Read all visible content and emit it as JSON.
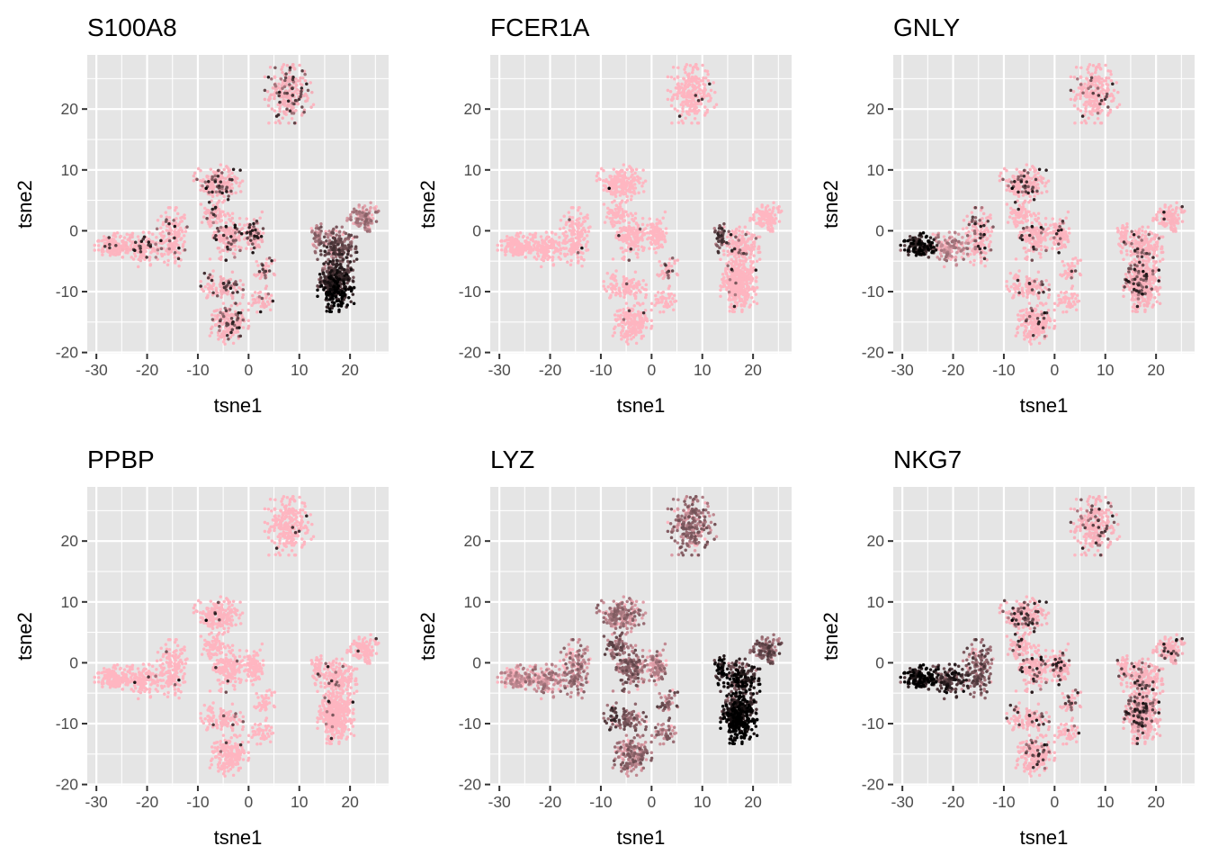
{
  "figure": {
    "description": "t-SNE embedding colored by gene expression, 2x3 facet grid"
  },
  "chart_data": {
    "type": "scatter",
    "xlabel": "tsne1",
    "ylabel": "tsne2",
    "xlim": [
      -31.8,
      27.6
    ],
    "ylim": [
      -20.2,
      28.9
    ],
    "xticks": [
      -30,
      -20,
      -10,
      0,
      10,
      20
    ],
    "xtick_labels": [
      "-30",
      "-20",
      "-10",
      "0",
      "10",
      "20"
    ],
    "yticks": [
      -20,
      -10,
      0,
      10,
      20
    ],
    "ytick_labels": [
      "-20",
      "-10",
      "0",
      "10",
      "20"
    ],
    "grid": true,
    "panel_background": "#e5e5e5",
    "grid_color": "#ffffff",
    "color_scale": {
      "low": "#ffb6c1",
      "high": "#000000",
      "legend": "none"
    },
    "clusters": [
      {
        "id": "top",
        "cx": 8.0,
        "cy": 22.5,
        "sx": 2.0,
        "sy": 2.0,
        "n": 260
      },
      {
        "id": "upper-mid",
        "cx": -6.0,
        "cy": 7.8,
        "sx": 2.0,
        "sy": 1.3,
        "n": 210
      },
      {
        "id": "mid-small",
        "cx": -6.5,
        "cy": 2.8,
        "sx": 1.2,
        "sy": 1.0,
        "n": 70
      },
      {
        "id": "center-l",
        "cx": -4.0,
        "cy": -1.0,
        "sx": 1.5,
        "sy": 1.6,
        "n": 150
      },
      {
        "id": "center-r",
        "cx": 1.0,
        "cy": -0.5,
        "sx": 1.2,
        "sy": 1.5,
        "n": 110
      },
      {
        "id": "arm-far",
        "cx": -26.5,
        "cy": -2.5,
        "sx": 1.6,
        "sy": 0.9,
        "n": 150
      },
      {
        "id": "arm-mid",
        "cx": -20.5,
        "cy": -2.8,
        "sx": 1.8,
        "sy": 1.3,
        "n": 140
      },
      {
        "id": "arm-near",
        "cx": -15.0,
        "cy": -1.0,
        "sx": 1.2,
        "sy": 2.0,
        "n": 160
      },
      {
        "id": "lower-mid",
        "cx": -4.2,
        "cy": -9.3,
        "sx": 1.3,
        "sy": 1.1,
        "n": 80
      },
      {
        "id": "lower-left",
        "cx": -7.5,
        "cy": -9.0,
        "sx": 0.8,
        "sy": 1.0,
        "n": 35
      },
      {
        "id": "bottom",
        "cx": -3.8,
        "cy": -15.3,
        "sx": 1.6,
        "sy": 1.4,
        "n": 190
      },
      {
        "id": "right-up",
        "cx": 3.0,
        "cy": -6.5,
        "sx": 0.9,
        "sy": 1.1,
        "n": 45
      },
      {
        "id": "right-low",
        "cx": 2.5,
        "cy": -11.5,
        "sx": 1.0,
        "sy": 0.9,
        "n": 45
      },
      {
        "id": "mono-body",
        "cx": 17.2,
        "cy": -8.5,
        "sx": 1.5,
        "sy": 2.0,
        "n": 420
      },
      {
        "id": "mono-neck",
        "cx": 17.5,
        "cy": -2.5,
        "sx": 1.6,
        "sy": 1.3,
        "n": 170
      },
      {
        "id": "mono-arm",
        "cx": 22.5,
        "cy": 2.3,
        "sx": 1.3,
        "sy": 1.0,
        "n": 120
      },
      {
        "id": "mono-spur",
        "cx": 13.6,
        "cy": -1.2,
        "sx": 0.5,
        "sy": 1.0,
        "n": 45
      }
    ],
    "panels": [
      {
        "title": "S100A8",
        "expression": {
          "top": 0.08,
          "upper-mid": 0.06,
          "mid-small": 0.05,
          "center-l": 0.06,
          "center-r": 0.08,
          "arm-far": 0.02,
          "arm-mid": 0.04,
          "arm-near": 0.03,
          "lower-mid": 0.08,
          "lower-left": 0.04,
          "bottom": 0.06,
          "right-up": 0.06,
          "right-low": 0.05,
          "mono-body": 0.8,
          "mono-neck": 0.55,
          "mono-arm": 0.25,
          "mono-spur": 0.3
        }
      },
      {
        "title": "FCER1A",
        "expression": {
          "top": 0.01,
          "upper-mid": 0.0,
          "mid-small": 0.01,
          "center-l": 0.01,
          "center-r": 0.0,
          "arm-far": 0.0,
          "arm-mid": 0.0,
          "arm-near": 0.01,
          "lower-mid": 0.01,
          "lower-left": 0.0,
          "bottom": 0.01,
          "right-up": 0.04,
          "right-low": 0.01,
          "mono-body": 0.01,
          "mono-neck": 0.03,
          "mono-arm": 0.0,
          "mono-spur": 0.6
        }
      },
      {
        "title": "GNLY",
        "expression": {
          "top": 0.03,
          "upper-mid": 0.05,
          "mid-small": 0.02,
          "center-l": 0.04,
          "center-r": 0.03,
          "arm-far": 0.85,
          "arm-mid": 0.2,
          "arm-near": 0.06,
          "lower-mid": 0.04,
          "lower-left": 0.02,
          "bottom": 0.03,
          "right-up": 0.02,
          "right-low": 0.02,
          "mono-body": 0.05,
          "mono-neck": 0.04,
          "mono-arm": 0.03,
          "mono-spur": 0.02
        }
      },
      {
        "title": "PPBP",
        "expression": {
          "top": 0.01,
          "upper-mid": 0.02,
          "mid-small": 0.01,
          "center-l": 0.01,
          "center-r": 0.0,
          "arm-far": 0.0,
          "arm-mid": 0.01,
          "arm-near": 0.01,
          "lower-mid": 0.02,
          "lower-left": 0.0,
          "bottom": 0.01,
          "right-up": 0.0,
          "right-low": 0.0,
          "mono-body": 0.01,
          "mono-neck": 0.02,
          "mono-arm": 0.01,
          "mono-spur": 0.02
        }
      },
      {
        "title": "LYZ",
        "expression": {
          "top": 0.35,
          "upper-mid": 0.3,
          "mid-small": 0.45,
          "center-l": 0.4,
          "center-r": 0.25,
          "arm-far": 0.12,
          "arm-mid": 0.22,
          "arm-near": 0.3,
          "lower-mid": 0.4,
          "lower-left": 0.6,
          "bottom": 0.35,
          "right-up": 0.45,
          "right-low": 0.35,
          "mono-body": 0.95,
          "mono-neck": 0.85,
          "mono-arm": 0.5,
          "mono-spur": 0.9
        }
      },
      {
        "title": "NKG7",
        "expression": {
          "top": 0.06,
          "upper-mid": 0.07,
          "mid-small": 0.05,
          "center-l": 0.05,
          "center-r": 0.06,
          "arm-far": 0.92,
          "arm-mid": 0.75,
          "arm-near": 0.5,
          "lower-mid": 0.05,
          "lower-left": 0.04,
          "bottom": 0.04,
          "right-up": 0.06,
          "right-low": 0.03,
          "mono-body": 0.08,
          "mono-neck": 0.06,
          "mono-arm": 0.07,
          "mono-spur": 0.04
        }
      }
    ]
  }
}
